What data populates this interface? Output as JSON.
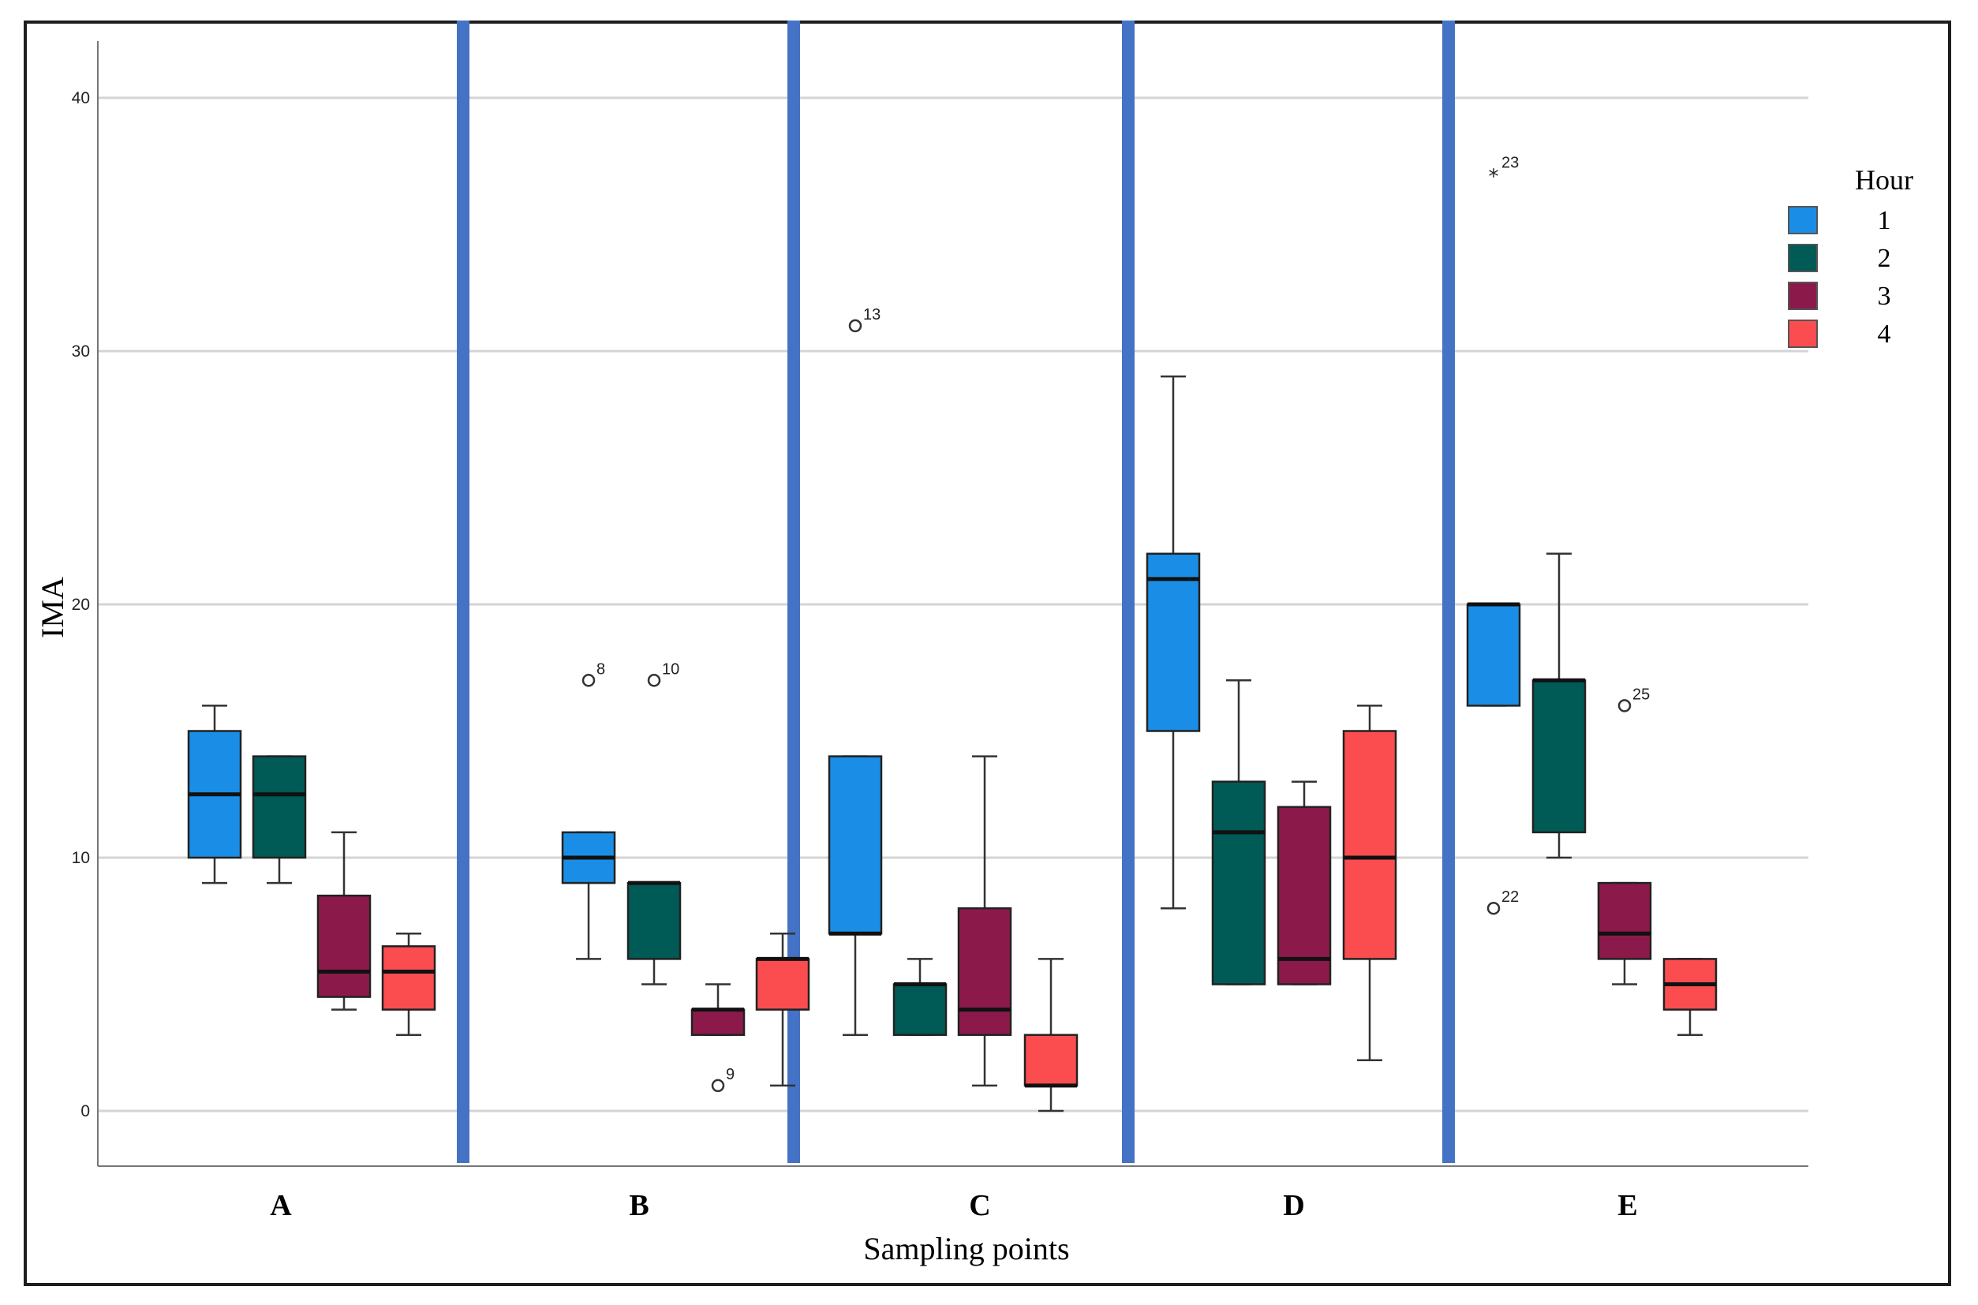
{
  "chart_data": {
    "type": "box",
    "xlabel": "Sampling points",
    "ylabel": "IMA",
    "ylim": [
      -2,
      42.5
    ],
    "yticks": [
      0,
      10,
      20,
      30,
      40
    ],
    "grid": "horizontal",
    "legend": {
      "title": "Hour",
      "placement": "top-right",
      "entries": [
        {
          "label": "1",
          "color": "#1a8ee6"
        },
        {
          "label": "2",
          "color": "#005a55"
        },
        {
          "label": "3",
          "color": "#8b1a4b"
        },
        {
          "label": "4",
          "color": "#fb4d4f"
        }
      ]
    },
    "separator_color": "#4472c4",
    "categories": [
      "A",
      "B",
      "C",
      "D",
      "E"
    ],
    "boxes": [
      {
        "category": "A",
        "hour": "1",
        "min": 9,
        "q1": 10,
        "median": 12.5,
        "q3": 15,
        "max": 16
      },
      {
        "category": "A",
        "hour": "2",
        "min": 9,
        "q1": 10,
        "median": 12.5,
        "q3": 14,
        "max": 14
      },
      {
        "category": "A",
        "hour": "3",
        "min": 4,
        "q1": 4.5,
        "median": 5.5,
        "q3": 8.5,
        "max": 11
      },
      {
        "category": "A",
        "hour": "4",
        "min": 3,
        "q1": 4,
        "median": 5.5,
        "q3": 6.5,
        "max": 7
      },
      {
        "category": "B",
        "hour": "1",
        "min": 6,
        "q1": 9,
        "median": 10,
        "q3": 11,
        "max": 11
      },
      {
        "category": "B",
        "hour": "2",
        "min": 5,
        "q1": 6,
        "median": 9,
        "q3": 9,
        "max": 9
      },
      {
        "category": "B",
        "hour": "3",
        "min": 3,
        "q1": 3,
        "median": 4,
        "q3": 4,
        "max": 5
      },
      {
        "category": "B",
        "hour": "4",
        "min": 1,
        "q1": 4,
        "median": 6,
        "q3": 6,
        "max": 7
      },
      {
        "category": "C",
        "hour": "1",
        "min": 3,
        "q1": 7,
        "median": 7,
        "q3": 14,
        "max": 14
      },
      {
        "category": "C",
        "hour": "2",
        "min": 3,
        "q1": 3,
        "median": 5,
        "q3": 5,
        "max": 6
      },
      {
        "category": "C",
        "hour": "3",
        "min": 1,
        "q1": 3,
        "median": 4,
        "q3": 8,
        "max": 14
      },
      {
        "category": "C",
        "hour": "4",
        "min": 0,
        "q1": 1,
        "median": 1,
        "q3": 3,
        "max": 6
      },
      {
        "category": "D",
        "hour": "1",
        "min": 8,
        "q1": 15,
        "median": 21,
        "q3": 22,
        "max": 29
      },
      {
        "category": "D",
        "hour": "2",
        "min": 5,
        "q1": 5,
        "median": 11,
        "q3": 13,
        "max": 17
      },
      {
        "category": "D",
        "hour": "3",
        "min": 5,
        "q1": 5,
        "median": 6,
        "q3": 12,
        "max": 13
      },
      {
        "category": "D",
        "hour": "4",
        "min": 2,
        "q1": 6,
        "median": 10,
        "q3": 15,
        "max": 16
      },
      {
        "category": "E",
        "hour": "1",
        "min": 16,
        "q1": 16,
        "median": 20,
        "q3": 20,
        "max": 20
      },
      {
        "category": "E",
        "hour": "2",
        "min": 10,
        "q1": 11,
        "median": 17,
        "q3": 17,
        "max": 22
      },
      {
        "category": "E",
        "hour": "3",
        "min": 5,
        "q1": 6,
        "median": 7,
        "q3": 9,
        "max": 9
      },
      {
        "category": "E",
        "hour": "4",
        "min": 3,
        "q1": 4,
        "median": 5,
        "q3": 6,
        "max": 6
      }
    ],
    "outliers": [
      {
        "category": "B",
        "hour": "1",
        "value": 17,
        "label": "8",
        "marker": "circle"
      },
      {
        "category": "B",
        "hour": "2",
        "value": 17,
        "label": "10",
        "marker": "circle"
      },
      {
        "category": "B",
        "hour": "3",
        "value": 1,
        "label": "9",
        "marker": "circle"
      },
      {
        "category": "C",
        "hour": "1",
        "value": 31,
        "label": "13",
        "marker": "circle"
      },
      {
        "category": "E",
        "hour": "1",
        "value": 37,
        "label": "23",
        "marker": "star"
      },
      {
        "category": "E",
        "hour": "1",
        "value": 8,
        "label": "22",
        "marker": "circle"
      },
      {
        "category": "E",
        "hour": "3",
        "value": 16,
        "label": "25",
        "marker": "circle"
      }
    ]
  }
}
